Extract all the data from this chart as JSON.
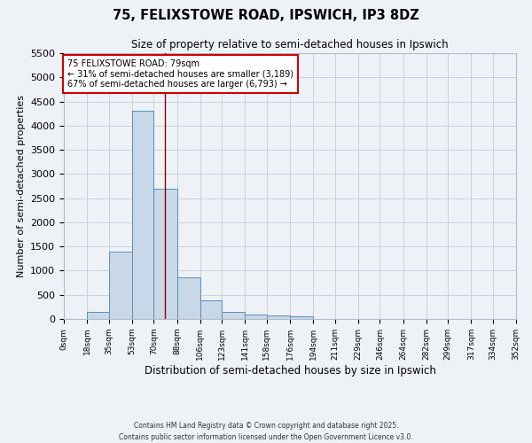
{
  "title": "75, FELIXSTOWE ROAD, IPSWICH, IP3 8DZ",
  "subtitle": "Size of property relative to semi-detached houses in Ipswich",
  "xlabel": "Distribution of semi-detached houses by size in Ipswich",
  "ylabel": "Number of semi-detached properties",
  "bin_edges": [
    0,
    18,
    35,
    53,
    70,
    88,
    106,
    123,
    141,
    158,
    176,
    194,
    211,
    229,
    246,
    264,
    282,
    299,
    317,
    334,
    352
  ],
  "bar_heights": [
    0,
    150,
    1400,
    4300,
    2700,
    870,
    380,
    150,
    100,
    70,
    50,
    0,
    0,
    0,
    0,
    0,
    0,
    0,
    0,
    0
  ],
  "bar_color": "#c8d8e8",
  "bar_edge_color": "#5b8db8",
  "property_size": 79,
  "property_line_color": "#8b0000",
  "annotation_text": "75 FELIXSTOWE ROAD: 79sqm\n← 31% of semi-detached houses are smaller (3,189)\n67% of semi-detached houses are larger (6,793) →",
  "annotation_box_color": "#ffffff",
  "annotation_box_edge_color": "#cc0000",
  "ylim": [
    0,
    5500
  ],
  "yticks": [
    0,
    500,
    1000,
    1500,
    2000,
    2500,
    3000,
    3500,
    4000,
    4500,
    5000,
    5500
  ],
  "footer_line1": "Contains HM Land Registry data © Crown copyright and database right 2025.",
  "footer_line2": "Contains public sector information licensed under the Open Government Licence v3.0.",
  "bg_color": "#eef2f7",
  "grid_color": "#c8d0dc"
}
